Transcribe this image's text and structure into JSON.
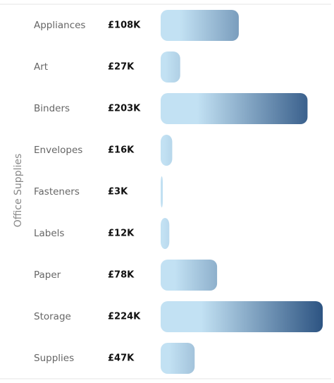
{
  "chart_data": {
    "type": "bar",
    "orientation": "horizontal",
    "y_label": "Office Supplies",
    "categories": [
      "Appliances",
      "Art",
      "Binders",
      "Envelopes",
      "Fasteners",
      "Labels",
      "Paper",
      "Storage",
      "Supplies"
    ],
    "values": [
      108,
      27,
      203,
      16,
      3,
      12,
      78,
      224,
      47
    ],
    "value_labels": [
      "£108K",
      "£27K",
      "£203K",
      "£16K",
      "£3K",
      "£12K",
      "£78K",
      "£224K",
      "£47K"
    ],
    "color_range": [
      "#c2e1f3",
      "#2d5482"
    ]
  }
}
